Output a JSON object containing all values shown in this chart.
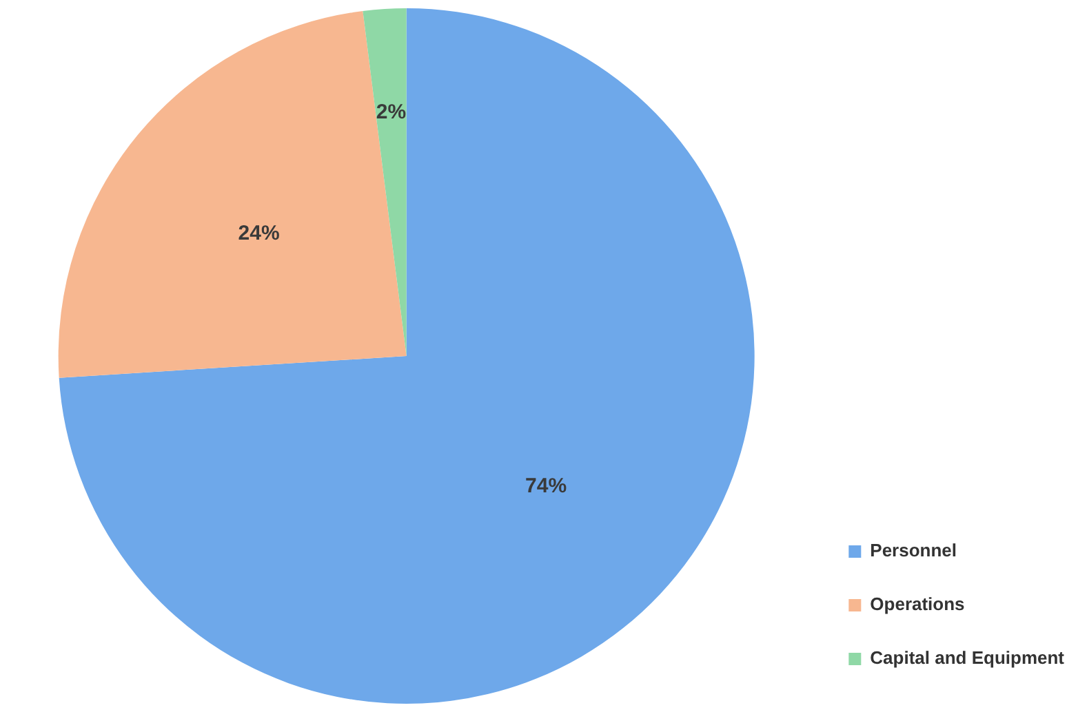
{
  "chart_data": {
    "type": "pie",
    "categories": [
      "Personnel",
      "Operations",
      "Capital and Equipment"
    ],
    "values": [
      74,
      24,
      2
    ],
    "colors": [
      "#6ea8ea",
      "#f7b790",
      "#8fd8a6"
    ],
    "value_labels": [
      "74%",
      "24%",
      "2%"
    ],
    "legend": "bottom right"
  }
}
